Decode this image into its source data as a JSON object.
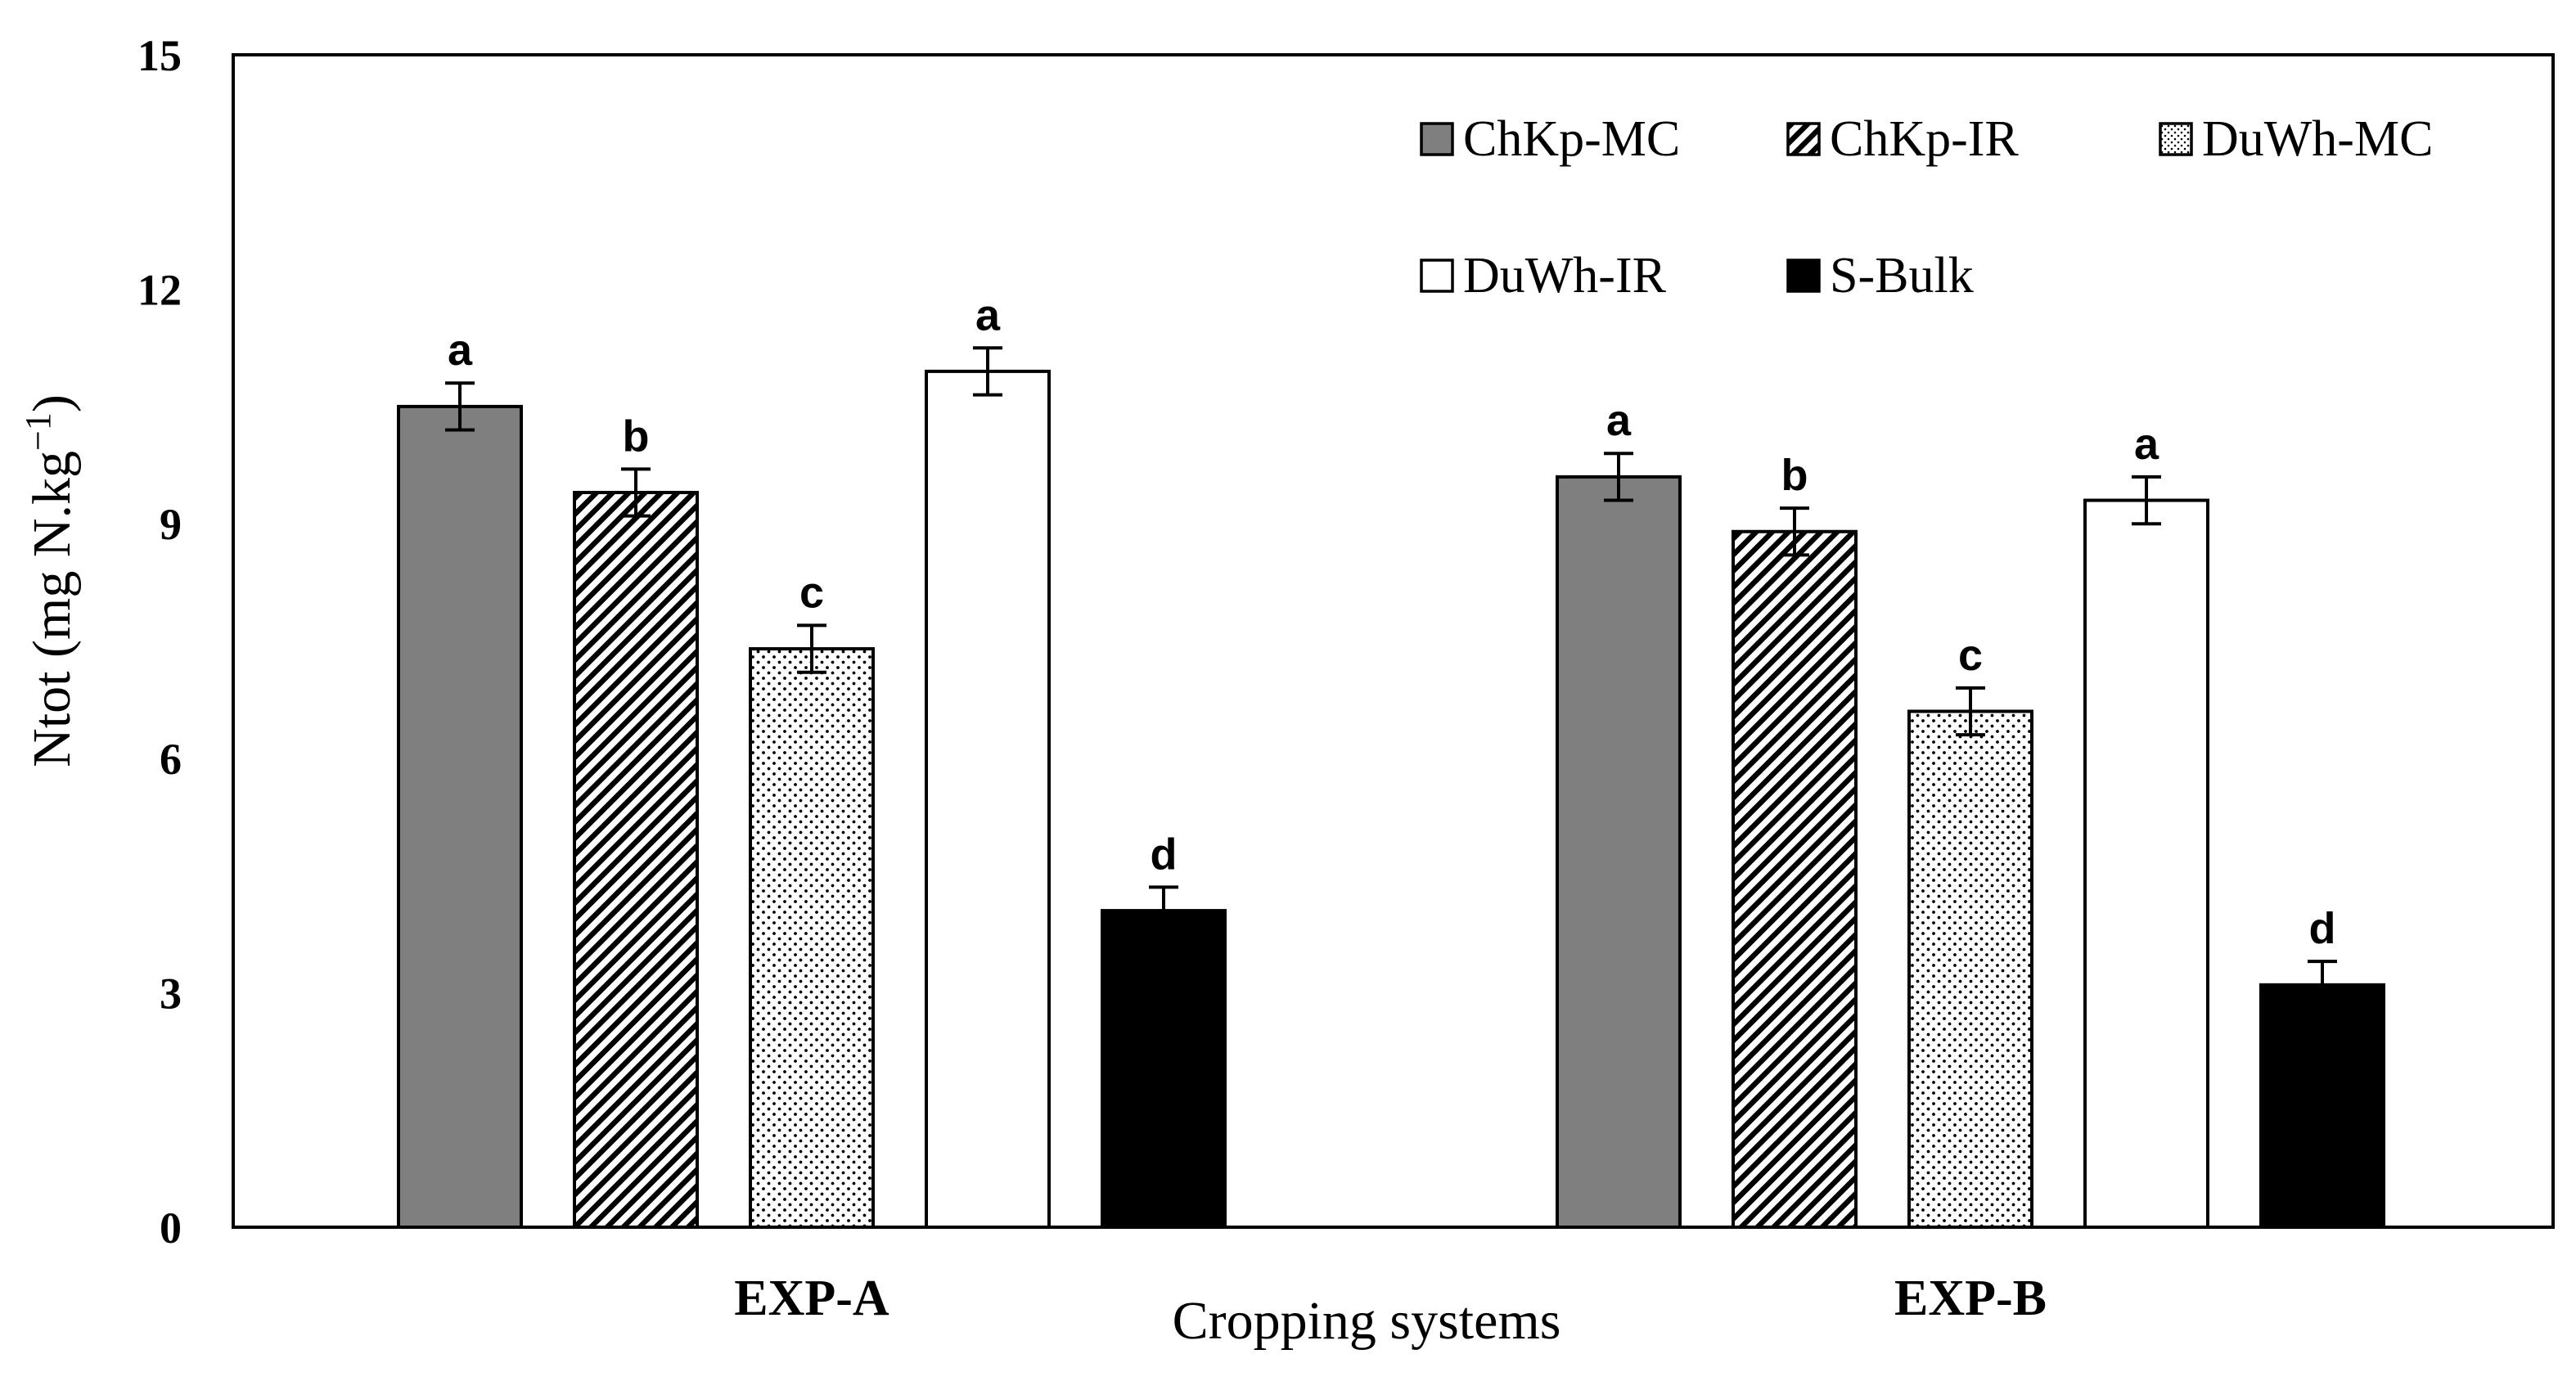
{
  "chart_data": {
    "type": "bar",
    "title": "",
    "xlabel": "Cropping systems",
    "ylabel": "Ntot (mg N.kg−1)",
    "ylabel_main": "Ntot (mg N.kg",
    "ylabel_sup": "−1",
    "ylabel_close": ")",
    "ylim": [
      0,
      15
    ],
    "yticks": [
      "0",
      "3",
      "6",
      "9",
      "12",
      "15"
    ],
    "grid": false,
    "legend_position": "top-right",
    "categories": [
      "EXP-A",
      "EXP-B"
    ],
    "series": [
      {
        "name": "ChKp-MC",
        "pattern": "solid-gray",
        "values": [
          10.5,
          9.6
        ],
        "errors": [
          0.3,
          0.3
        ],
        "letters": [
          "a",
          "a"
        ]
      },
      {
        "name": "ChKp-IR",
        "pattern": "diagonal-hatch",
        "values": [
          9.4,
          8.9
        ],
        "errors": [
          0.3,
          0.3
        ],
        "letters": [
          "b",
          "b"
        ]
      },
      {
        "name": "DuWh-MC",
        "pattern": "dotted",
        "values": [
          7.4,
          6.6
        ],
        "errors": [
          0.3,
          0.3
        ],
        "letters": [
          "c",
          "c"
        ]
      },
      {
        "name": "DuWh-IR",
        "pattern": "white",
        "values": [
          10.95,
          9.3
        ],
        "errors": [
          0.3,
          0.3
        ],
        "letters": [
          "a",
          "a"
        ]
      },
      {
        "name": "S-Bulk",
        "pattern": "solid-black",
        "values": [
          4.05,
          3.1
        ],
        "errors": [
          0.3,
          0.3
        ],
        "letters": [
          "d",
          "d"
        ]
      }
    ],
    "colors": {
      "gray_fill": "#7f7f7f",
      "black_fill": "#000000",
      "white_fill": "#ffffff",
      "stroke": "#000000"
    }
  }
}
